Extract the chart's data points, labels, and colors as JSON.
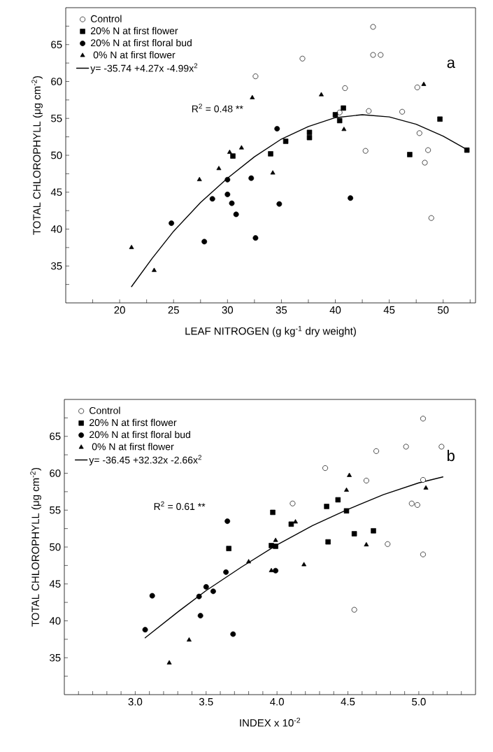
{
  "chart_data": [
    {
      "type": "scatter",
      "xlabel": "LEAF NITROGEN (g kg$^{-1}$ dry weight)",
      "ylabel": "TOTAL CHLOROPHYLL (μg cm$^{-2}$)",
      "xlim": [
        15,
        53
      ],
      "ylim": [
        30,
        70
      ],
      "xticks": [
        {
          "value": 17.5,
          "label": null
        },
        20,
        {
          "value": 22.5,
          "label": null
        },
        25,
        {
          "value": 27.5,
          "label": null
        },
        30,
        {
          "value": 32.5,
          "label": null
        },
        35,
        {
          "value": 37.5,
          "label": null
        },
        40,
        {
          "value": 42.5,
          "label": null
        },
        45,
        {
          "value": 47.5,
          "label": null
        },
        50,
        {
          "value": 52.5,
          "label": null
        }
      ],
      "yticks": [
        {
          "value": 32.5,
          "label": null
        },
        35,
        {
          "value": 37.5,
          "label": null
        },
        40,
        {
          "value": 42.5,
          "label": null
        },
        45,
        {
          "value": 47.5,
          "label": null
        },
        50,
        {
          "value": 52.5,
          "label": null
        },
        55,
        {
          "value": 57.5,
          "label": null
        },
        60,
        {
          "value": 62.5,
          "label": null
        },
        65,
        {
          "value": 67.5,
          "label": null
        }
      ],
      "legend": "top left",
      "annotations": [
        "R$^{2}$  = 0.48 **",
        "a"
      ],
      "series": [
        {
          "name": "Control",
          "color": "#ffffff",
          "marker": "circle",
          "x": [
            32.6,
            36.95,
            43.5,
            43.5,
            44.2,
            40.9,
            43.1,
            42.8,
            40.4,
            46.2,
            47.6,
            47.8,
            48.6,
            48.3,
            48.9
          ],
          "values": [
            60.7,
            63.1,
            67.4,
            63.6,
            63.6,
            59.1,
            56.0,
            50.6,
            55.8,
            55.9,
            59.2,
            53.0,
            50.7,
            49.0,
            41.5
          ]
        },
        {
          "name": "20% N at first flower",
          "color": "#000000",
          "marker": "square",
          "x": [
            40.75,
            40.0,
            40.4,
            37.6,
            37.6,
            35.4,
            34.0,
            30.5,
            49.7,
            46.9,
            52.2
          ],
          "values": [
            56.4,
            55.5,
            54.7,
            53.1,
            52.4,
            51.9,
            50.2,
            49.9,
            54.9,
            50.1,
            50.7
          ]
        },
        {
          "name": "20% N at first floral bud",
          "color": "#000000",
          "marker": "circle",
          "x": [
            24.8,
            27.85,
            28.6,
            30.0,
            30.0,
            30.4,
            30.8,
            32.2,
            32.6,
            34.6,
            34.8,
            41.4
          ],
          "values": [
            40.8,
            38.3,
            44.1,
            46.7,
            44.7,
            43.5,
            42.0,
            46.9,
            38.8,
            53.6,
            43.4,
            44.2
          ]
        },
        {
          "name": "  0% N at first flower",
          "color": "#000000",
          "marker": "triangle",
          "x": [
            21.1,
            23.2,
            27.4,
            29.2,
            30.2,
            31.3,
            32.3,
            34.2,
            38.7,
            40.8,
            48.2
          ],
          "values": [
            37.5,
            34.4,
            46.7,
            48.2,
            50.4,
            51.0,
            57.8,
            47.6,
            58.2,
            53.5,
            59.6
          ]
        },
        {
          "name": "y= -35.74 +4.27x -4.99x$^{2}$",
          "type": "line",
          "color": "#000000",
          "marker": "none",
          "line_style": "solid",
          "x": [
            21.1,
            23,
            25,
            27.5,
            30,
            32.5,
            35,
            37.5,
            40,
            42.5,
            45,
            47.5,
            50,
            52.3
          ],
          "values": [
            32.2,
            36.0,
            39.7,
            43.6,
            46.9,
            49.8,
            52.2,
            53.9,
            55.1,
            55.5,
            55.2,
            54.2,
            52.6,
            50.7
          ]
        }
      ]
    },
    {
      "type": "scatter",
      "xlabel": "INDEX x 10$^{-2}$",
      "ylabel": "TOTAL CHLOROPHYLL (μg cm$^{-2}$)",
      "xlim": [
        2.5,
        5.4
      ],
      "ylim": [
        30,
        70
      ],
      "xticks": [
        {
          "value": 2.6,
          "label": null
        },
        {
          "value": 2.7,
          "label": null
        },
        {
          "value": 2.8,
          "label": null
        },
        {
          "value": 2.9,
          "label": null
        },
        {
          "value": 3.0,
          "label": "3.0"
        },
        {
          "value": 3.1,
          "label": null
        },
        {
          "value": 3.2,
          "label": null
        },
        {
          "value": 3.3,
          "label": null
        },
        {
          "value": 3.4,
          "label": null
        },
        3.5,
        {
          "value": 3.6,
          "label": null
        },
        {
          "value": 3.7,
          "label": null
        },
        {
          "value": 3.8,
          "label": null
        },
        {
          "value": 3.9,
          "label": null
        },
        {
          "value": 4.0,
          "label": "4.0"
        },
        {
          "value": 4.1,
          "label": null
        },
        {
          "value": 4.2,
          "label": null
        },
        {
          "value": 4.3,
          "label": null
        },
        {
          "value": 4.4,
          "label": null
        },
        4.5,
        {
          "value": 4.6,
          "label": null
        },
        {
          "value": 4.7,
          "label": null
        },
        {
          "value": 4.8,
          "label": null
        },
        {
          "value": 4.9,
          "label": null
        },
        {
          "value": 5.0,
          "label": "5.0"
        },
        {
          "value": 5.1,
          "label": null
        },
        {
          "value": 5.2,
          "label": null
        },
        {
          "value": 5.3,
          "label": null
        }
      ],
      "yticks": [
        {
          "value": 32.5,
          "label": null
        },
        35,
        {
          "value": 37.5,
          "label": null
        },
        40,
        {
          "value": 42.5,
          "label": null
        },
        45,
        {
          "value": 47.5,
          "label": null
        },
        50,
        {
          "value": 52.5,
          "label": null
        },
        55,
        {
          "value": 57.5,
          "label": null
        },
        60,
        {
          "value": 62.5,
          "label": null
        },
        65,
        {
          "value": 67.5,
          "label": null
        }
      ],
      "legend": "top left",
      "annotations": [
        "R$^{2}$ = 0.61 **",
        "b"
      ],
      "series": [
        {
          "name": "Control",
          "color": "#ffffff",
          "marker": "circle",
          "x": [
            4.11,
            4.34,
            4.63,
            4.7,
            4.78,
            4.545,
            4.91,
            5.03,
            5.16,
            5.03,
            4.95,
            4.99,
            5.03
          ],
          "values": [
            55.9,
            60.7,
            59.0,
            63.0,
            50.4,
            41.5,
            63.6,
            67.4,
            63.6,
            59.1,
            55.9,
            55.7,
            49.0
          ]
        },
        {
          "name": "20% N at first flower",
          "color": "#000000",
          "marker": "square",
          "x": [
            3.66,
            3.97,
            3.96,
            3.99,
            4.1,
            4.35,
            4.43,
            4.49,
            4.36,
            4.545,
            4.68
          ],
          "values": [
            49.8,
            54.7,
            50.2,
            50.1,
            53.1,
            55.5,
            56.4,
            54.9,
            50.7,
            51.8,
            52.2
          ]
        },
        {
          "name": "20% N at first floral bud",
          "color": "#000000",
          "marker": "circle",
          "x": [
            3.07,
            3.12,
            3.45,
            3.46,
            3.5,
            3.55,
            3.64,
            3.65,
            3.69,
            3.99
          ],
          "values": [
            38.8,
            43.4,
            43.3,
            40.7,
            44.6,
            44.0,
            46.6,
            53.5,
            38.2,
            46.8
          ]
        },
        {
          "name": "  0% N at first flower",
          "color": "#000000",
          "marker": "triangle",
          "x": [
            3.24,
            3.38,
            3.8,
            3.99,
            4.13,
            4.19,
            4.49,
            4.51,
            4.63,
            5.05,
            3.96
          ],
          "values": [
            34.3,
            37.4,
            48.0,
            50.9,
            53.4,
            47.6,
            57.7,
            59.7,
            50.3,
            58.0,
            46.8
          ]
        },
        {
          "name": "y= -36.45 +32.32x -2.66x$^{2}$",
          "type": "line",
          "color": "#000000",
          "marker": "none",
          "line_style": "solid",
          "x": [
            3.07,
            3.3,
            3.5,
            3.75,
            4.0,
            4.25,
            4.5,
            4.75,
            5.0,
            5.17
          ],
          "values": [
            37.7,
            41.2,
            44.1,
            47.3,
            50.3,
            52.9,
            55.1,
            57.1,
            58.7,
            59.5
          ]
        }
      ]
    }
  ]
}
